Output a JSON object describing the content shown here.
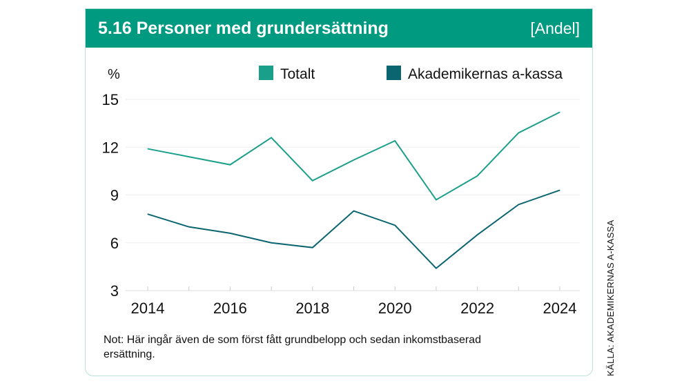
{
  "header": {
    "title": "5.16  Personer med grundersättning",
    "unit": "[Andel]"
  },
  "note": "Not: Här ingår även de som först fått grundbelopp och sedan inkomstbaserad ersättning.",
  "source": "KÄLLA: AKADEMIKERNAS A-KASSA",
  "colors": {
    "header": "#009a80",
    "totalt": "#1aa08a",
    "akademikernas": "#0a6570"
  },
  "chart_data": {
    "type": "line",
    "title": "Personer med grundersättning",
    "ylabel": "%",
    "ylim": [
      3,
      15
    ],
    "yticks": [
      3,
      6,
      9,
      12,
      15
    ],
    "xticks": [
      2014,
      2016,
      2018,
      2020,
      2022,
      2024
    ],
    "x": [
      2014,
      2015,
      2016,
      2017,
      2018,
      2019,
      2020,
      2021,
      2022,
      2023,
      2024
    ],
    "legend_position": "top",
    "series": [
      {
        "name": "Totalt",
        "values": [
          11.9,
          11.4,
          10.9,
          12.6,
          9.9,
          11.2,
          12.4,
          8.7,
          10.2,
          12.9,
          14.2
        ]
      },
      {
        "name": "Akademikernas a-kassa",
        "values": [
          7.8,
          7.0,
          6.6,
          6.0,
          5.7,
          8.0,
          7.1,
          4.4,
          6.5,
          8.4,
          9.3
        ]
      }
    ]
  }
}
